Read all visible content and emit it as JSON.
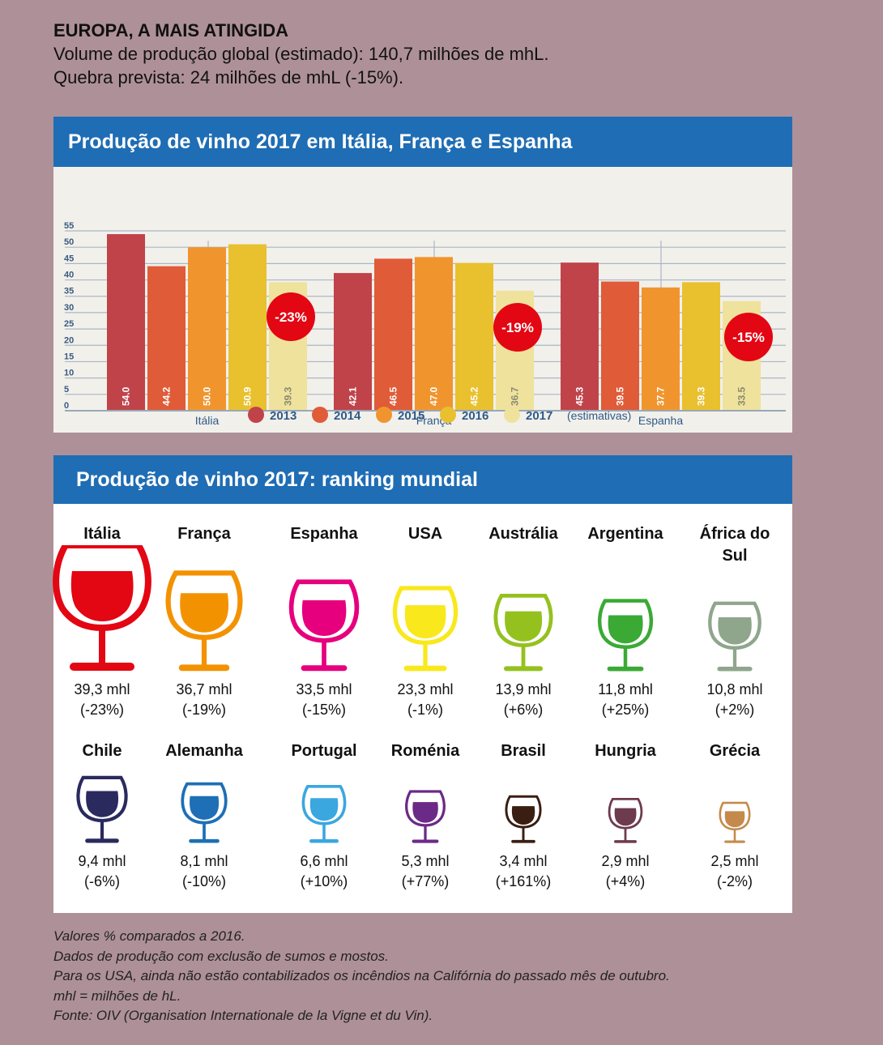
{
  "intro": {
    "heading": "EUROPA, A MAIS ATINGIDA",
    "line1": "Volume de produção global (estimado): 140,7 milhões de mhL.",
    "line2": "Quebra prevista: 24 milhões de mhL (-15%)."
  },
  "chart_panel": {
    "title": "Produção de vinho 2017 em Itália, França e Espanha"
  },
  "chart_data": {
    "type": "bar",
    "title": "Produção de vinho 2017 em Itália, França e Espanha",
    "categories": [
      "Itália",
      "França",
      "Espanha"
    ],
    "series": [
      {
        "name": "2013",
        "values": [
          54.0,
          42.1,
          45.3
        ],
        "color": "#c0434a"
      },
      {
        "name": "2014",
        "values": [
          44.2,
          46.5,
          39.5
        ],
        "color": "#e05b38"
      },
      {
        "name": "2015",
        "values": [
          50.0,
          47.0,
          37.7
        ],
        "color": "#f0952e"
      },
      {
        "name": "2016",
        "values": [
          50.9,
          45.2,
          39.3
        ],
        "color": "#e9c02e"
      },
      {
        "name": "2017",
        "values": [
          39.3,
          36.7,
          33.5
        ],
        "color": "#efe29c"
      }
    ],
    "value_labels": [
      [
        "54.0",
        "44.2",
        "50.0",
        "50.9",
        "39.3"
      ],
      [
        "42.1",
        "46.5",
        "47.0",
        "45.2",
        "36.7"
      ],
      [
        "45.3",
        "39.5",
        "37.7",
        "39.3",
        "33.5"
      ]
    ],
    "change_badges": [
      "-23%",
      "-19%",
      "-15%"
    ],
    "y_ticks": [
      "0",
      "5",
      "10",
      "15",
      "20",
      "25",
      "30",
      "35",
      "40",
      "45",
      "50",
      "55"
    ],
    "ylim": [
      0,
      55
    ],
    "grid": true,
    "legend_position": "bottom",
    "legend_note": "(estimativas)"
  },
  "ranking_panel": {
    "title": "Produção de vinho 2017: ranking mundial",
    "countries": [
      {
        "name": "Itália",
        "value": "39,3 mhl",
        "change": "(-23%)",
        "color": "#e30613"
      },
      {
        "name": "França",
        "value": "36,7 mhl",
        "change": "(-19%)",
        "color": "#f39200"
      },
      {
        "name": "Espanha",
        "value": "33,5 mhl",
        "change": "(-15%)",
        "color": "#e6007e"
      },
      {
        "name": "USA",
        "value": "23,3 mhl",
        "change": "(-1%)",
        "color": "#f9e81c"
      },
      {
        "name": "Austrália",
        "value": "13,9 mhl",
        "change": "(+6%)",
        "color": "#95c11f"
      },
      {
        "name": "Argentina",
        "value": "11,8 mhl",
        "change": "(+25%)",
        "color": "#3aaa35"
      },
      {
        "name": "África do Sul",
        "value": "10,8 mhl",
        "change": "(+2%)",
        "color": "#8fa68c"
      },
      {
        "name": "Chile",
        "value": "9,4 mhl",
        "change": "(-6%)",
        "color": "#2a2a5e"
      },
      {
        "name": "Alemanha",
        "value": "8,1 mhl",
        "change": "(-10%)",
        "color": "#1e6fb5"
      },
      {
        "name": "Portugal",
        "value": "6,6 mhl",
        "change": "(+10%)",
        "color": "#3ba7df"
      },
      {
        "name": "Roménia",
        "value": "5,3 mhl",
        "change": "(+77%)",
        "color": "#6b2a87"
      },
      {
        "name": "Brasil",
        "value": "3,4 mhl",
        "change": "(+161%)",
        "color": "#3b1e12"
      },
      {
        "name": "Hungria",
        "value": "2,9 mhl",
        "change": "(+4%)",
        "color": "#6e3a4e"
      },
      {
        "name": "Grécia",
        "value": "2,5 mhl",
        "change": "(-2%)",
        "color": "#c48a4c"
      }
    ]
  },
  "notes": [
    "Valores % comparados a 2016.",
    "Dados de produção com exclusão de sumos e mostos.",
    "Para os USA, ainda não estão contabilizados os incêndios na Califórnia do passado mês de outubro.",
    "mhl = milhões de hL.",
    "Fonte: OIV (Organisation Internationale de la Vigne et du Vin)."
  ]
}
